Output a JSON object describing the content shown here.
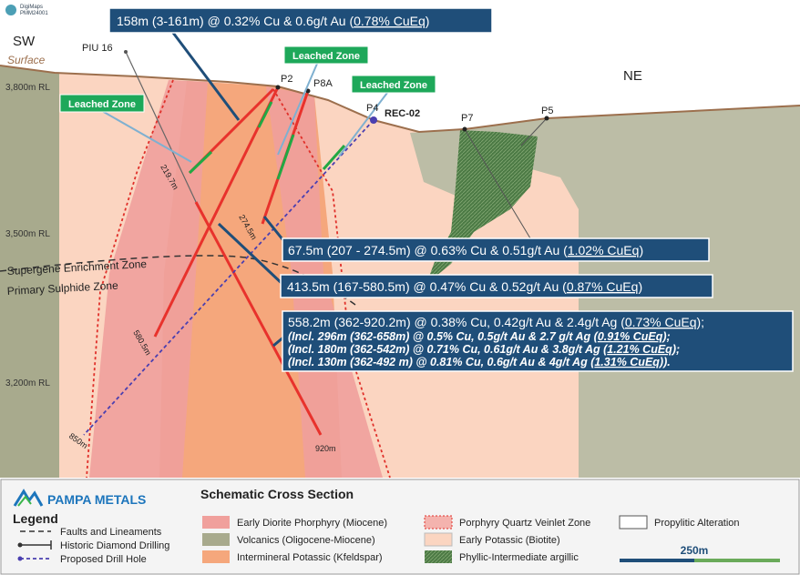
{
  "header": {
    "logo": [
      "DigiMaps",
      "PMM24001"
    ]
  },
  "section": {
    "directions": {
      "left": "SW",
      "right": "NE"
    },
    "surface": "Surface",
    "elevations": [
      "3,800m RL",
      "3,500m RL",
      "3,200m RL"
    ],
    "holes": [
      "PIU 16",
      "P2",
      "P8A",
      "P4",
      "REC-02",
      "P7",
      "P5"
    ],
    "leached_zones": [
      "Leached Zone",
      "Leached Zone",
      "Leached Zone"
    ],
    "depths": [
      "219.7m",
      "274.5m",
      "580.5m",
      "920m",
      "850m"
    ],
    "zones": [
      "Supergene Enrichment Zone",
      "Primary Sulphide Zone"
    ]
  },
  "callouts": [
    {
      "lines": [
        {
          "text": "158m (3-161m) @ 0.32% Cu & 0.6g/t Au (",
          "cueq": "0.78% CuEq",
          "end": ")"
        }
      ]
    },
    {
      "lines": [
        {
          "text": "67.5m (207 - 274.5m) @ 0.63% Cu & 0.51g/t Au (",
          "cueq": "1.02% CuEq",
          "end": ")"
        }
      ]
    },
    {
      "lines": [
        {
          "text": "413.5m (167-580.5m) @ 0.47% Cu & 0.52g/t Au (",
          "cueq": "0.87% CuEq",
          "end": ")"
        }
      ]
    },
    {
      "lines": [
        {
          "text": "558.2m (362-920.2m) @ 0.38% Cu, 0.42g/t Au & 2.4g/t Ag (",
          "cueq": "0.73% CuEq",
          "end": ");"
        },
        {
          "text": "(Incl. 296m (362-658m) @ 0.5% Cu, 0.5g/t Au & 2.7 g/t Ag (",
          "cueq": "0.91% CuEq",
          "end": ");"
        },
        {
          "text": "(Incl. 180m (362-542m) @ 0.71% Cu, 0.61g/t Au & 3.8g/t Ag (",
          "cueq": "1.21% CuEq",
          "end": ");"
        },
        {
          "text": "(Incl. 130m (362-492 m) @ 0.81% Cu, 0.6g/t Au & 4g/t Ag (",
          "cueq": "1.31% CuEq",
          "end": "))."
        }
      ]
    }
  ],
  "legend": {
    "brand": "PAMPA METALS",
    "heading": "Legend",
    "title": "Schematic Cross Section",
    "lines": [
      "Faults and Lineaments",
      "Historic Diamond Drilling",
      "Proposed Drill Hole"
    ],
    "units": [
      "Early Diorite Phorphyry (Miocene)",
      "Volcanics (Oligocene-Miocene)",
      "Intermineral Potassic (Kfeldspar)",
      "Porphyry Quartz Veinlet Zone",
      "Early Potassic (Biotite)",
      "Phyllic-Intermediate argillic",
      "Propylitic Alteration"
    ],
    "scale": "250m"
  }
}
